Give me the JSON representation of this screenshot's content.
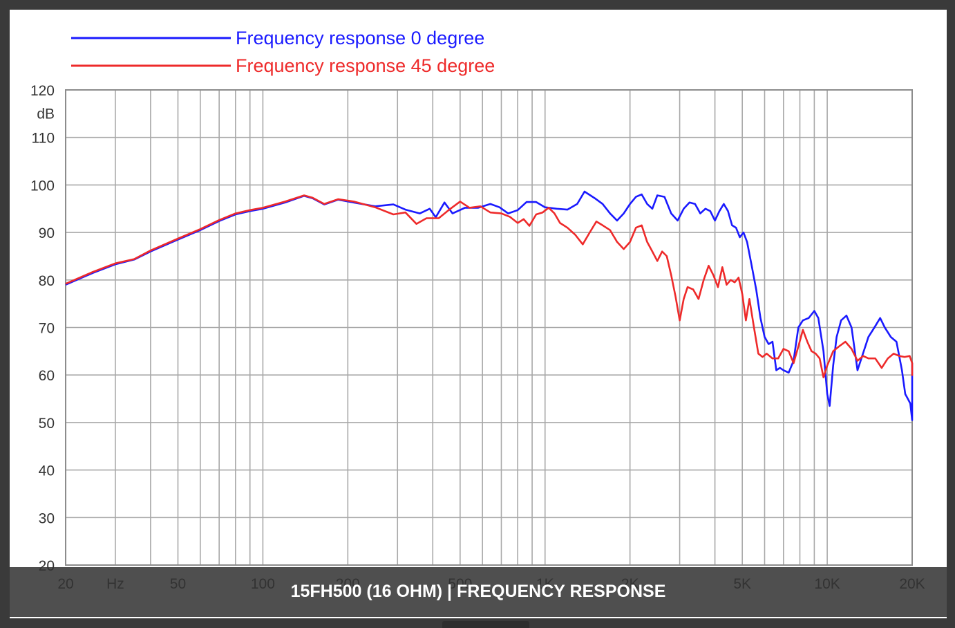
{
  "caption": "15FH500 (16 OHM) | FREQUENCY RESPONSE",
  "colors": {
    "series0": "#1a1aff",
    "series1": "#ee2a2a",
    "grid": "#a8a8a8",
    "caption_bg": "#323232"
  },
  "chart_data": {
    "type": "line",
    "title": "",
    "xlabel": "Hz",
    "ylabel": "dB",
    "xscale": "log",
    "xlim": [
      20,
      20000
    ],
    "ylim": [
      20,
      120
    ],
    "grid": true,
    "legend_position": "top-left",
    "x_tick_labels": [
      {
        "value": 20,
        "label": "20"
      },
      {
        "value": 30,
        "label": "Hz"
      },
      {
        "value": 50,
        "label": "50"
      },
      {
        "value": 100,
        "label": "100"
      },
      {
        "value": 200,
        "label": "200"
      },
      {
        "value": 500,
        "label": "500"
      },
      {
        "value": 1000,
        "label": "1K"
      },
      {
        "value": 2000,
        "label": "2K"
      },
      {
        "value": 5000,
        "label": "5K"
      },
      {
        "value": 10000,
        "label": "10K"
      },
      {
        "value": 20000,
        "label": "20K"
      }
    ],
    "y_ticks": [
      20,
      30,
      40,
      50,
      60,
      70,
      80,
      90,
      100,
      110,
      120
    ],
    "series": [
      {
        "name": "Frequency response 0 degree",
        "color": "#1a1aff",
        "points": [
          [
            20,
            79
          ],
          [
            25,
            81.5
          ],
          [
            30,
            83.3
          ],
          [
            35,
            84.3
          ],
          [
            40,
            86
          ],
          [
            50,
            88.5
          ],
          [
            60,
            90.5
          ],
          [
            70,
            92.4
          ],
          [
            80,
            93.8
          ],
          [
            90,
            94.5
          ],
          [
            100,
            95
          ],
          [
            120,
            96.3
          ],
          [
            140,
            97.7
          ],
          [
            150,
            97.2
          ],
          [
            165,
            95.9
          ],
          [
            185,
            96.9
          ],
          [
            210,
            96.3
          ],
          [
            250,
            95.5
          ],
          [
            290,
            95.9
          ],
          [
            320,
            94.8
          ],
          [
            360,
            94
          ],
          [
            390,
            95
          ],
          [
            410,
            93.2
          ],
          [
            440,
            96.3
          ],
          [
            470,
            94
          ],
          [
            520,
            95.2
          ],
          [
            580,
            95.2
          ],
          [
            640,
            96
          ],
          [
            690,
            95.3
          ],
          [
            740,
            94
          ],
          [
            800,
            94.7
          ],
          [
            860,
            96.4
          ],
          [
            930,
            96.4
          ],
          [
            1000,
            95.3
          ],
          [
            1100,
            95
          ],
          [
            1200,
            94.8
          ],
          [
            1300,
            96
          ],
          [
            1380,
            98.6
          ],
          [
            1500,
            97.2
          ],
          [
            1600,
            96
          ],
          [
            1700,
            94
          ],
          [
            1800,
            92.5
          ],
          [
            1900,
            94
          ],
          [
            2000,
            96
          ],
          [
            2100,
            97.5
          ],
          [
            2200,
            98
          ],
          [
            2300,
            96
          ],
          [
            2400,
            95
          ],
          [
            2500,
            97.8
          ],
          [
            2650,
            97.5
          ],
          [
            2800,
            94
          ],
          [
            2950,
            92.5
          ],
          [
            3100,
            95
          ],
          [
            3250,
            96.3
          ],
          [
            3400,
            96
          ],
          [
            3550,
            94
          ],
          [
            3700,
            95
          ],
          [
            3850,
            94.5
          ],
          [
            4000,
            92.5
          ],
          [
            4150,
            94.5
          ],
          [
            4300,
            96
          ],
          [
            4450,
            94.5
          ],
          [
            4600,
            91.5
          ],
          [
            4750,
            91
          ],
          [
            4900,
            89
          ],
          [
            5050,
            90
          ],
          [
            5200,
            88
          ],
          [
            5400,
            83
          ],
          [
            5600,
            78
          ],
          [
            5800,
            72
          ],
          [
            6000,
            68
          ],
          [
            6200,
            66.5
          ],
          [
            6400,
            67
          ],
          [
            6600,
            61
          ],
          [
            6800,
            61.5
          ],
          [
            7000,
            61
          ],
          [
            7300,
            60.5
          ],
          [
            7600,
            63
          ],
          [
            7900,
            70
          ],
          [
            8200,
            71.5
          ],
          [
            8600,
            72
          ],
          [
            9000,
            73.5
          ],
          [
            9300,
            72
          ],
          [
            9700,
            65
          ],
          [
            10000,
            56
          ],
          [
            10200,
            53.5
          ],
          [
            10500,
            62
          ],
          [
            10800,
            68
          ],
          [
            11200,
            71.5
          ],
          [
            11700,
            72.5
          ],
          [
            12200,
            70
          ],
          [
            12800,
            61
          ],
          [
            13300,
            64
          ],
          [
            14000,
            68
          ],
          [
            14700,
            70
          ],
          [
            15400,
            72
          ],
          [
            16000,
            70
          ],
          [
            16800,
            68
          ],
          [
            17600,
            67
          ],
          [
            18400,
            61
          ],
          [
            18900,
            56
          ],
          [
            19300,
            55
          ],
          [
            19700,
            54
          ],
          [
            20100,
            50.5
          ],
          [
            20600,
            56
          ],
          [
            21200,
            62
          ],
          [
            21700,
            60.5
          ],
          [
            22000,
            62.5
          ],
          [
            22400,
            62
          ]
        ]
      },
      {
        "name": "Frequency response 45 degree",
        "color": "#ee2a2a",
        "points": [
          [
            20,
            79.2
          ],
          [
            25,
            81.7
          ],
          [
            30,
            83.5
          ],
          [
            35,
            84.4
          ],
          [
            40,
            86.2
          ],
          [
            50,
            88.7
          ],
          [
            60,
            90.7
          ],
          [
            70,
            92.6
          ],
          [
            80,
            94
          ],
          [
            90,
            94.7
          ],
          [
            100,
            95.2
          ],
          [
            120,
            96.5
          ],
          [
            140,
            97.8
          ],
          [
            150,
            97.3
          ],
          [
            165,
            96
          ],
          [
            185,
            97
          ],
          [
            210,
            96.5
          ],
          [
            250,
            95.3
          ],
          [
            290,
            93.8
          ],
          [
            320,
            94.2
          ],
          [
            350,
            91.8
          ],
          [
            380,
            93
          ],
          [
            420,
            93
          ],
          [
            460,
            94.9
          ],
          [
            500,
            96.5
          ],
          [
            540,
            95.2
          ],
          [
            590,
            95.5
          ],
          [
            640,
            94.2
          ],
          [
            700,
            94
          ],
          [
            750,
            93.3
          ],
          [
            800,
            92
          ],
          [
            840,
            92.8
          ],
          [
            880,
            91.4
          ],
          [
            930,
            93.8
          ],
          [
            980,
            94.2
          ],
          [
            1030,
            95.2
          ],
          [
            1080,
            94
          ],
          [
            1130,
            92
          ],
          [
            1200,
            91
          ],
          [
            1280,
            89.5
          ],
          [
            1360,
            87.5
          ],
          [
            1440,
            90
          ],
          [
            1520,
            92.3
          ],
          [
            1600,
            91.5
          ],
          [
            1700,
            90.5
          ],
          [
            1800,
            88
          ],
          [
            1900,
            86.5
          ],
          [
            2000,
            88
          ],
          [
            2100,
            91
          ],
          [
            2200,
            91.5
          ],
          [
            2300,
            88
          ],
          [
            2400,
            86
          ],
          [
            2500,
            84
          ],
          [
            2600,
            86
          ],
          [
            2700,
            85
          ],
          [
            2800,
            81
          ],
          [
            2900,
            76.5
          ],
          [
            3000,
            71.5
          ],
          [
            3100,
            76
          ],
          [
            3200,
            78.5
          ],
          [
            3350,
            78
          ],
          [
            3500,
            76
          ],
          [
            3650,
            80
          ],
          [
            3800,
            83
          ],
          [
            3950,
            81
          ],
          [
            4100,
            78.5
          ],
          [
            4250,
            82.7
          ],
          [
            4400,
            79
          ],
          [
            4550,
            80
          ],
          [
            4700,
            79.5
          ],
          [
            4850,
            80.5
          ],
          [
            5000,
            77
          ],
          [
            5150,
            71.5
          ],
          [
            5300,
            76
          ],
          [
            5500,
            70
          ],
          [
            5700,
            64.5
          ],
          [
            5900,
            63.8
          ],
          [
            6100,
            64.5
          ],
          [
            6400,
            63.5
          ],
          [
            6700,
            63.5
          ],
          [
            7000,
            65.5
          ],
          [
            7300,
            65
          ],
          [
            7600,
            62.5
          ],
          [
            7900,
            66
          ],
          [
            8200,
            69.5
          ],
          [
            8500,
            67
          ],
          [
            8800,
            65
          ],
          [
            9100,
            64.5
          ],
          [
            9400,
            63.5
          ],
          [
            9700,
            59.5
          ],
          [
            10000,
            62
          ],
          [
            10500,
            65
          ],
          [
            11000,
            66
          ],
          [
            11600,
            67
          ],
          [
            12200,
            65.5
          ],
          [
            12800,
            63
          ],
          [
            13400,
            64
          ],
          [
            14000,
            63.5
          ],
          [
            14800,
            63.5
          ],
          [
            15600,
            61.5
          ],
          [
            16400,
            63.5
          ],
          [
            17200,
            64.5
          ],
          [
            18000,
            64
          ],
          [
            18800,
            63.8
          ],
          [
            19600,
            64
          ],
          [
            20400,
            62.5
          ],
          [
            21000,
            60
          ],
          [
            21600,
            61
          ]
        ]
      }
    ]
  }
}
